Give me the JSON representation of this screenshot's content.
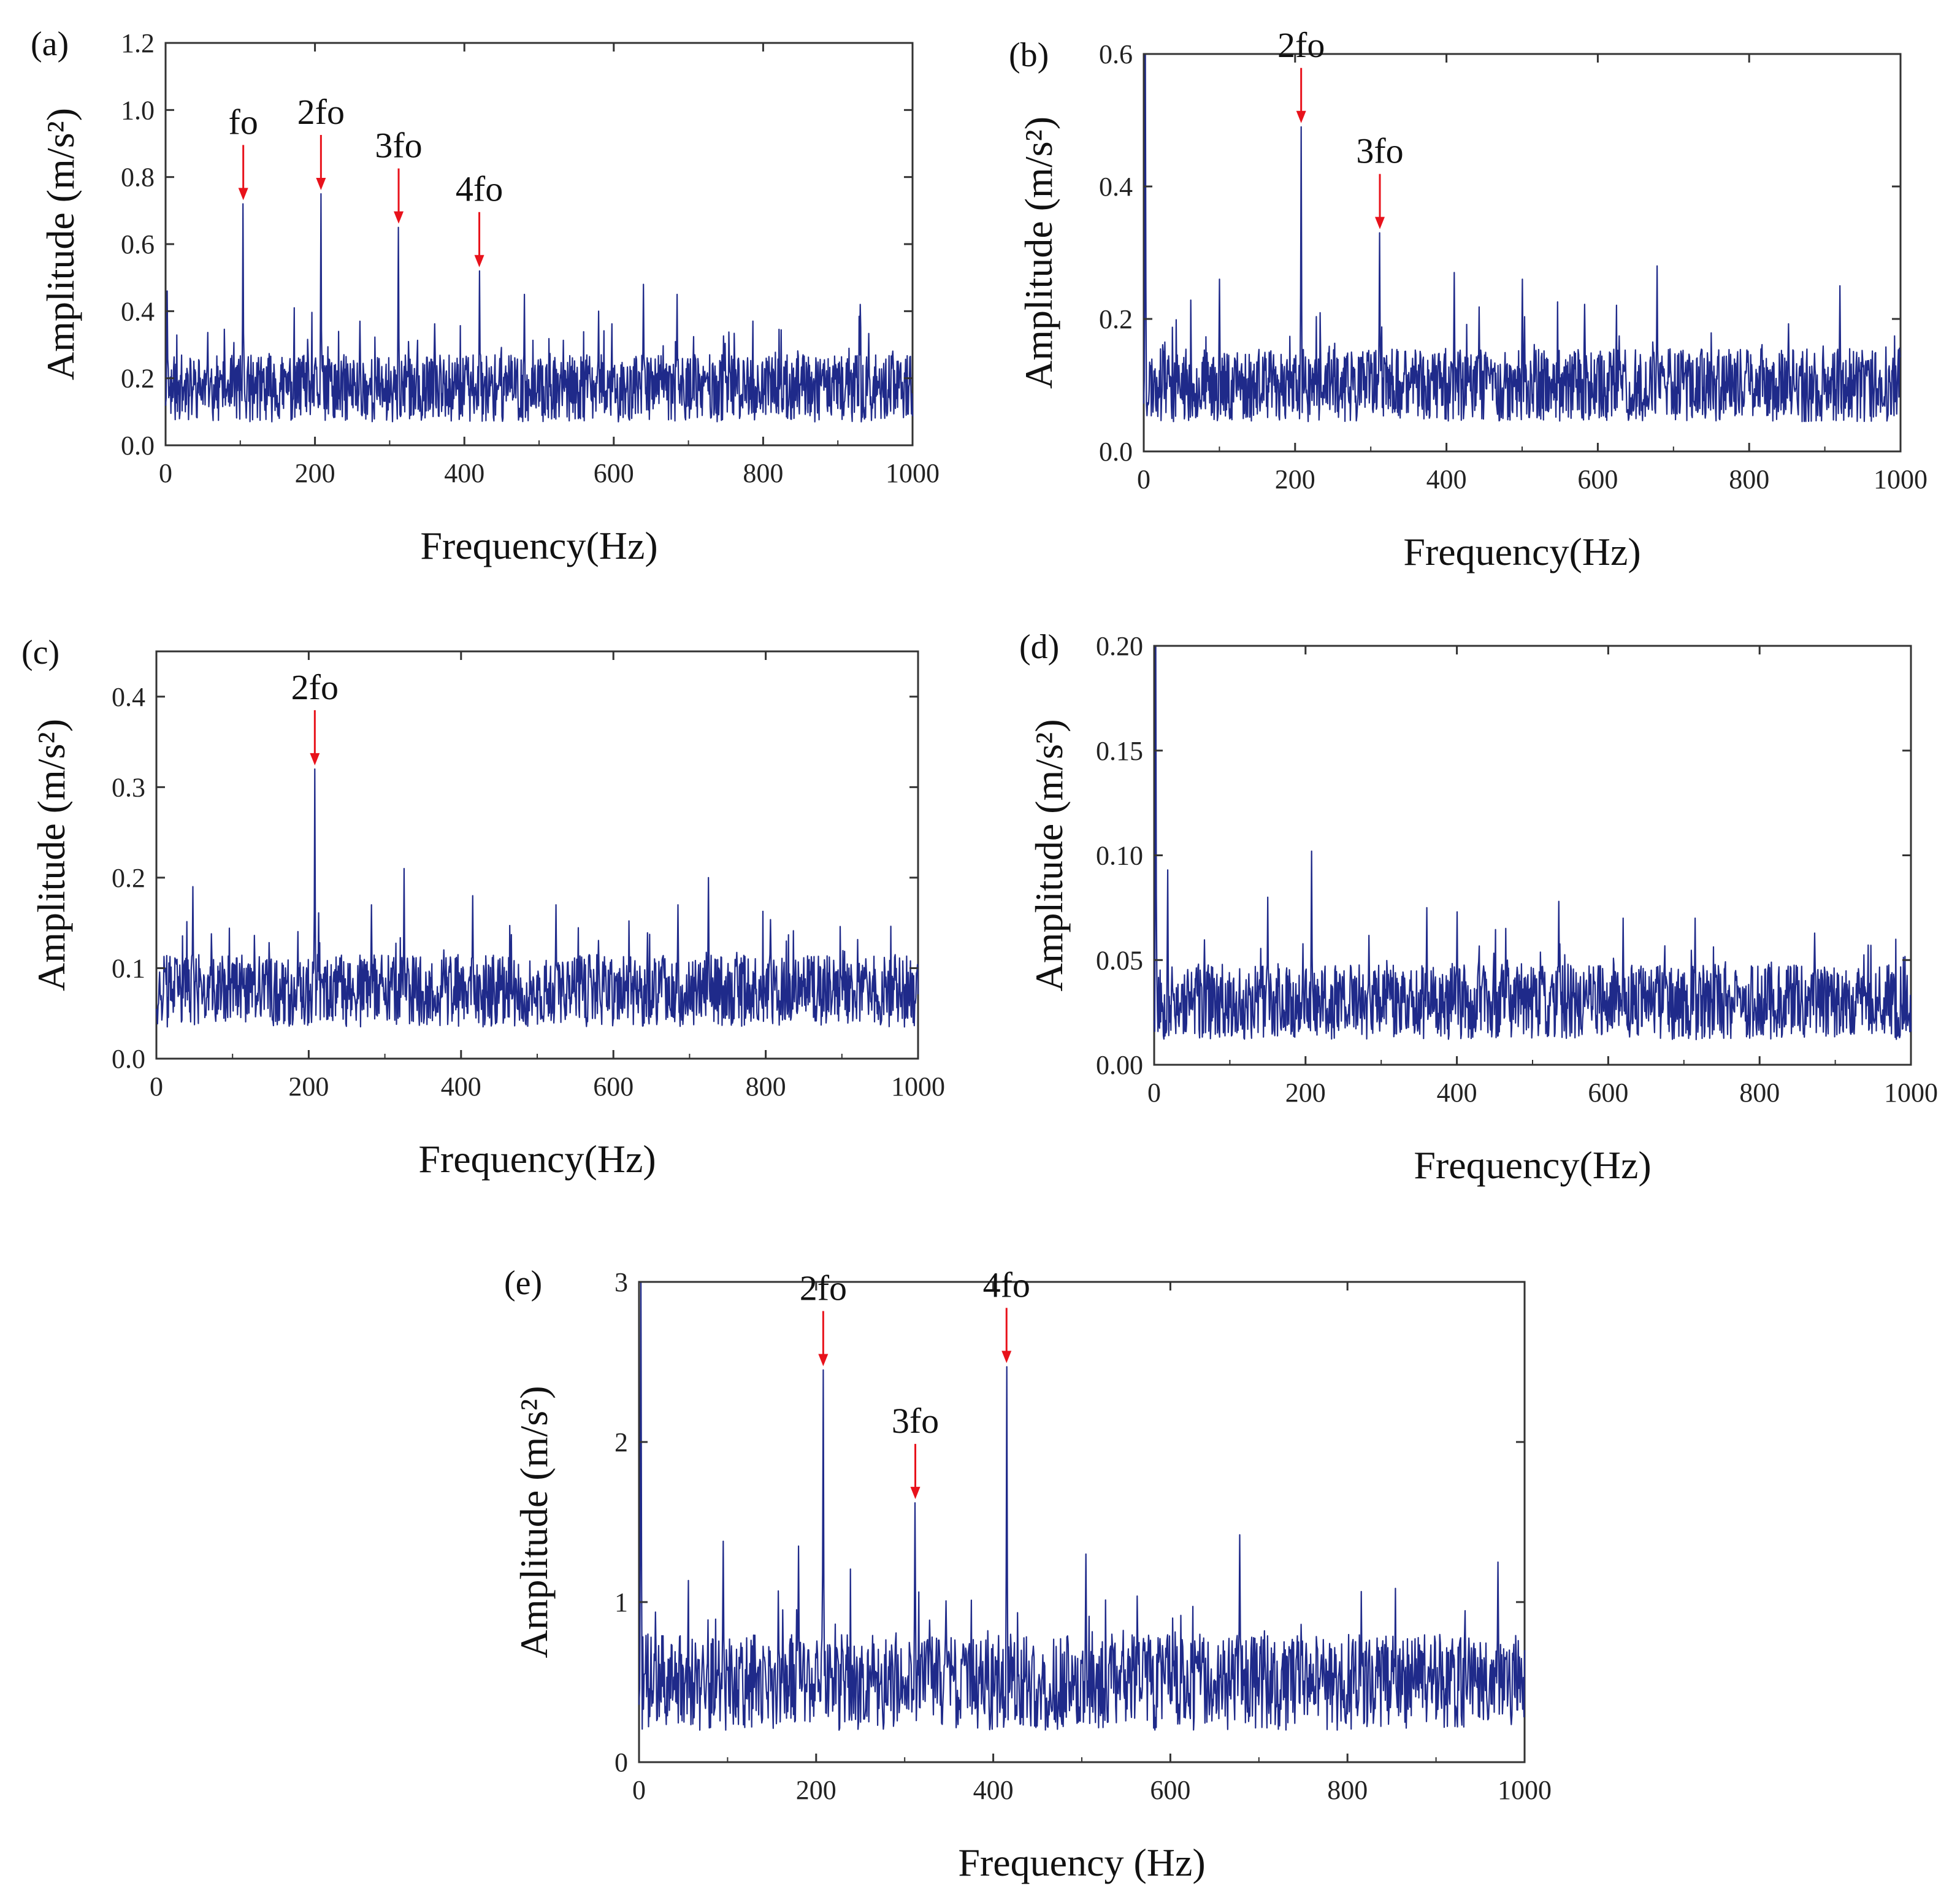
{
  "colors": {
    "line": "#1f2a8a",
    "arrow": "#e8121b",
    "frame": "#333333",
    "text": "#111111"
  },
  "chart_data": [
    {
      "type": "line",
      "panel_label": "(a)",
      "title": "",
      "xlabel": "Frequency(Hz)",
      "ylabel": "Amplitude (m/s²)",
      "xlim": [
        0,
        1000
      ],
      "ylim": [
        0,
        1.2
      ],
      "xticks": [
        "0",
        "200",
        "400",
        "600",
        "800",
        "1000"
      ],
      "yticks": [
        "0.0",
        "0.2",
        "0.4",
        "0.6",
        "0.8",
        "1.0",
        "1.2"
      ],
      "xtick_values": [
        0,
        200,
        400,
        600,
        800,
        1000
      ],
      "ytick_values": [
        0,
        0.2,
        0.4,
        0.6,
        0.8,
        1.0,
        1.2
      ],
      "baseline": 0.17,
      "noise_amp": 0.1,
      "seed": 11,
      "points": 1400,
      "peaks": [
        [
          104,
          0.72
        ],
        [
          208,
          0.75
        ],
        [
          312,
          0.65
        ],
        [
          420,
          0.52
        ],
        [
          2,
          0.46
        ],
        [
          260,
          0.37
        ],
        [
          640,
          0.48
        ],
        [
          480,
          0.45
        ],
        [
          580,
          0.4
        ],
        [
          685,
          0.45
        ],
        [
          930,
          0.42
        ]
      ],
      "annotations": [
        {
          "text": "fo",
          "x": 104,
          "y": 0.72
        },
        {
          "text": "2fo",
          "x": 208,
          "y": 0.75
        },
        {
          "text": "3fo",
          "x": 312,
          "y": 0.65
        },
        {
          "text": "4fo",
          "x": 420,
          "y": 0.52
        }
      ]
    },
    {
      "type": "line",
      "panel_label": "(b)",
      "title": "",
      "xlabel": "Frequency(Hz)",
      "ylabel": "Amplitude (m/s²)",
      "xlim": [
        0,
        1000
      ],
      "ylim": [
        0,
        0.6
      ],
      "xticks": [
        "0",
        "200",
        "400",
        "600",
        "800",
        "1000"
      ],
      "yticks": [
        "0.0",
        "0.2",
        "0.4",
        "0.6"
      ],
      "xtick_values": [
        0,
        200,
        400,
        600,
        800,
        1000
      ],
      "ytick_values": [
        0,
        0.2,
        0.4,
        0.6
      ],
      "baseline": 0.1,
      "noise_amp": 0.055,
      "seed": 23,
      "points": 1400,
      "peaks": [
        [
          208,
          0.49
        ],
        [
          312,
          0.33
        ],
        [
          2,
          0.6
        ],
        [
          410,
          0.27
        ],
        [
          678,
          0.28
        ],
        [
          100,
          0.26
        ],
        [
          500,
          0.26
        ],
        [
          920,
          0.25
        ]
      ],
      "annotations": [
        {
          "text": "2fo",
          "x": 208,
          "y": 0.49
        },
        {
          "text": "3fo",
          "x": 312,
          "y": 0.33
        }
      ]
    },
    {
      "type": "line",
      "panel_label": "(c)",
      "title": "",
      "xlabel": "Frequency(Hz)",
      "ylabel": "Amplitude (m/s²)",
      "xlim": [
        0,
        1000
      ],
      "ylim": [
        0,
        0.45
      ],
      "xticks": [
        "0",
        "200",
        "400",
        "600",
        "800",
        "1000"
      ],
      "yticks": [
        "0.0",
        "0.1",
        "0.2",
        "0.3",
        "0.4"
      ],
      "xtick_values": [
        0,
        200,
        400,
        600,
        800,
        1000
      ],
      "ytick_values": [
        0,
        0.1,
        0.2,
        0.3,
        0.4
      ],
      "baseline": 0.075,
      "noise_amp": 0.04,
      "seed": 37,
      "points": 1400,
      "peaks": [
        [
          208,
          0.32
        ],
        [
          325,
          0.21
        ],
        [
          725,
          0.2
        ],
        [
          48,
          0.19
        ],
        [
          415,
          0.18
        ],
        [
          525,
          0.17
        ],
        [
          282,
          0.17
        ],
        [
          685,
          0.17
        ]
      ],
      "annotations": [
        {
          "text": "2fo",
          "x": 208,
          "y": 0.32
        }
      ]
    },
    {
      "type": "line",
      "panel_label": "(d)",
      "title": "",
      "xlabel": "Frequency(Hz)",
      "ylabel": "Amplitude (m/s²)",
      "xlim": [
        0,
        1000
      ],
      "ylim": [
        0,
        0.2
      ],
      "xticks": [
        "0",
        "200",
        "400",
        "600",
        "800",
        "1000"
      ],
      "yticks": [
        "0.00",
        "0.05",
        "0.10",
        "0.15",
        "0.20"
      ],
      "xtick_values": [
        0,
        200,
        400,
        600,
        800,
        1000
      ],
      "ytick_values": [
        0,
        0.05,
        0.1,
        0.15,
        0.2
      ],
      "baseline": 0.03,
      "noise_amp": 0.018,
      "seed": 53,
      "points": 1400,
      "peaks": [
        [
          2,
          0.2
        ],
        [
          208,
          0.102
        ],
        [
          18,
          0.093
        ],
        [
          150,
          0.08
        ],
        [
          535,
          0.078
        ],
        [
          360,
          0.075
        ],
        [
          400,
          0.073
        ],
        [
          620,
          0.07
        ],
        [
          715,
          0.07
        ]
      ],
      "annotations": []
    },
    {
      "type": "line",
      "panel_label": "(e)",
      "title": "",
      "xlabel": "Frequency (Hz)",
      "ylabel": "Amplitude (m/s²)",
      "xlim": [
        0,
        1000
      ],
      "ylim": [
        0,
        3
      ],
      "xticks": [
        "0",
        "200",
        "400",
        "600",
        "800",
        "1000"
      ],
      "yticks": [
        "0",
        "1",
        "2",
        "3"
      ],
      "xtick_values": [
        0,
        200,
        400,
        600,
        800,
        1000
      ],
      "ytick_values": [
        0,
        1,
        2,
        3
      ],
      "baseline": 0.5,
      "noise_amp": 0.3,
      "seed": 71,
      "points": 1400,
      "peaks": [
        [
          2,
          3.0
        ],
        [
          208,
          2.45
        ],
        [
          312,
          1.62
        ],
        [
          415,
          2.47
        ],
        [
          678,
          1.42
        ],
        [
          95,
          1.38
        ],
        [
          180,
          1.35
        ],
        [
          505,
          1.3
        ],
        [
          970,
          1.25
        ]
      ],
      "annotations": [
        {
          "text": "2fo",
          "x": 208,
          "y": 2.45
        },
        {
          "text": "3fo",
          "x": 312,
          "y": 1.62
        },
        {
          "text": "4fo",
          "x": 415,
          "y": 2.47
        }
      ]
    }
  ]
}
